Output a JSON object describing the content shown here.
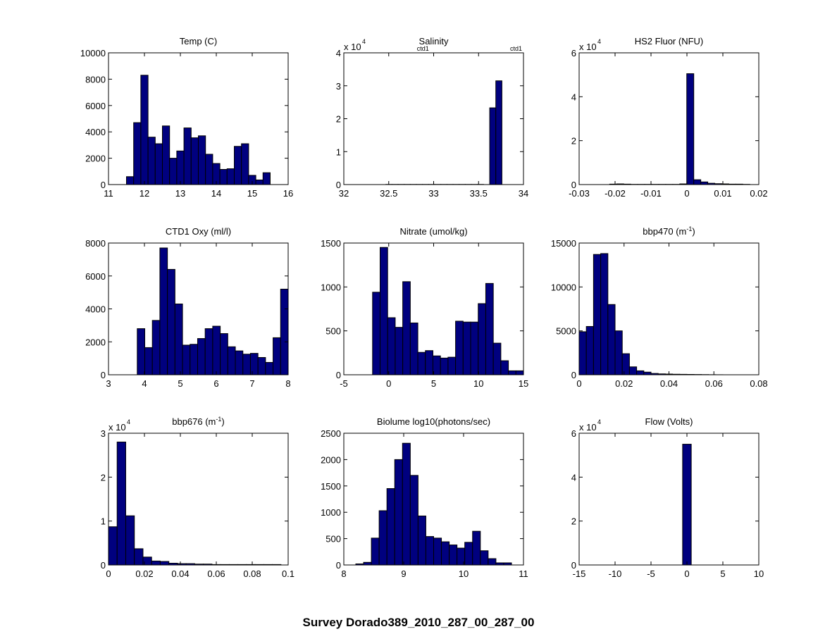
{
  "figure": {
    "suptitle": "Survey Dorado389_2010_287_00_287_00",
    "bar_fill": "#00007f",
    "bar_edge": "#000000"
  },
  "chart_data": [
    {
      "type": "bar",
      "title": "Temp (C)",
      "xlim": [
        11,
        16
      ],
      "ylim": [
        0,
        10000
      ],
      "xticks": [
        "11",
        "12",
        "13",
        "14",
        "15",
        "16"
      ],
      "yticks": [
        "0",
        "2000",
        "4000",
        "6000",
        "8000",
        "10000"
      ],
      "bin_start": 11.5,
      "bin_width": 0.2,
      "values": [
        600,
        4700,
        8300,
        3600,
        3100,
        4450,
        2000,
        2550,
        4300,
        3550,
        3700,
        2300,
        1600,
        1150,
        1200,
        2900,
        3100,
        700,
        350,
        900
      ]
    },
    {
      "type": "bar",
      "title": "Salinity",
      "exponent_label": "x 10",
      "exponent_power": "4",
      "annotations": [
        "ctd1",
        "ctd1"
      ],
      "xlim": [
        32,
        34
      ],
      "ylim": [
        0,
        4
      ],
      "xticks": [
        "32",
        "32.5",
        "33",
        "33.5",
        "34"
      ],
      "yticks": [
        "0",
        "1",
        "2",
        "3",
        "4"
      ],
      "bin_start": 32.4,
      "bin_width": 0.068,
      "values": [
        0,
        0.005,
        0.005,
        0.005,
        0.005,
        0.005,
        0.005,
        0.005,
        0.005,
        0.005,
        0.005,
        0.005,
        0.005,
        0.005,
        0.005,
        0.005,
        0.005,
        0,
        2.33,
        3.15
      ]
    },
    {
      "type": "bar",
      "title": "HS2 Fluor (NFU)",
      "exponent_label": "x 10",
      "exponent_power": "4",
      "xlim": [
        -0.03,
        0.02
      ],
      "ylim": [
        0,
        6
      ],
      "xticks": [
        "-0.03",
        "-0.02",
        "-0.01",
        "0",
        "0.01",
        "0.02"
      ],
      "yticks": [
        "0",
        "2",
        "4",
        "6"
      ],
      "bin_start": -0.0215,
      "bin_width": 0.00195,
      "values": [
        0.02,
        0.03,
        0.02,
        0.01,
        0.01,
        0.01,
        0.01,
        0.01,
        0.01,
        0.01,
        0.03,
        5.05,
        0.22,
        0.12,
        0.06,
        0.04,
        0.03,
        0.02,
        0.02,
        0.01
      ]
    },
    {
      "type": "bar",
      "title": "CTD1 Oxy (ml/l)",
      "xlim": [
        3,
        8
      ],
      "ylim": [
        0,
        8000
      ],
      "xticks": [
        "3",
        "4",
        "5",
        "6",
        "7",
        "8"
      ],
      "yticks": [
        "0",
        "2000",
        "4000",
        "6000",
        "8000"
      ],
      "bin_start": 3.8,
      "bin_width": 0.21,
      "values": [
        2800,
        1650,
        3300,
        7700,
        6400,
        4300,
        1800,
        1850,
        2200,
        2800,
        2950,
        2500,
        1700,
        1450,
        1250,
        1300,
        1050,
        750,
        2250,
        5200
      ]
    },
    {
      "type": "bar",
      "title": "Nitrate (umol/kg)",
      "xlim": [
        -5,
        15
      ],
      "ylim": [
        0,
        1500
      ],
      "xticks": [
        "-5",
        "0",
        "5",
        "10",
        "15"
      ],
      "yticks": [
        "0",
        "500",
        "1000",
        "1500"
      ],
      "bin_start": -1.8,
      "bin_width": 0.84,
      "values": [
        940,
        1450,
        650,
        540,
        1060,
        590,
        255,
        275,
        215,
        190,
        200,
        610,
        600,
        600,
        810,
        1040,
        360,
        160,
        45,
        45
      ]
    },
    {
      "type": "bar",
      "title": "bbp470 (m",
      "title_sup": "-1",
      "title_end": ")",
      "xlim": [
        0,
        0.08
      ],
      "ylim": [
        0,
        15000
      ],
      "xticks": [
        "0",
        "0.02",
        "0.04",
        "0.06",
        "0.08"
      ],
      "yticks": [
        "0",
        "5000",
        "10000",
        "15000"
      ],
      "bin_start": 0,
      "bin_width": 0.0032,
      "values": [
        4900,
        5500,
        13700,
        13800,
        8000,
        5000,
        2400,
        900,
        450,
        300,
        150,
        100,
        80,
        60,
        50,
        40,
        30,
        20,
        10,
        5
      ]
    },
    {
      "type": "bar",
      "title": "bbp676 (m",
      "title_sup": "-1",
      "title_end": ")",
      "exponent_label": "x 10",
      "exponent_power": "4",
      "xlim": [
        0,
        0.1
      ],
      "ylim": [
        0,
        3
      ],
      "xticks": [
        "0",
        "0.02",
        "0.04",
        "0.06",
        "0.08",
        "0.1"
      ],
      "yticks": [
        "0",
        "1",
        "2",
        "3"
      ],
      "bin_start": 0,
      "bin_width": 0.0048,
      "values": [
        0.87,
        2.8,
        1.12,
        0.37,
        0.18,
        0.09,
        0.08,
        0.04,
        0.03,
        0.03,
        0.02,
        0.02,
        0.01,
        0.01,
        0.01,
        0.01,
        0.01,
        0.01,
        0.01,
        0.01
      ]
    },
    {
      "type": "bar",
      "title": "Biolume log10(photons/sec)",
      "xlim": [
        8,
        11
      ],
      "ylim": [
        0,
        2500
      ],
      "xticks": [
        "8",
        "9",
        "10",
        "11"
      ],
      "yticks": [
        "0",
        "500",
        "1000",
        "1500",
        "2000",
        "2500"
      ],
      "bin_start": 8.2,
      "bin_width": 0.13,
      "values": [
        20,
        50,
        510,
        1030,
        1450,
        2000,
        2310,
        1700,
        930,
        540,
        510,
        440,
        380,
        320,
        430,
        640,
        270,
        120,
        40,
        40
      ]
    },
    {
      "type": "bar",
      "title": "Flow (Volts)",
      "exponent_label": "x 10",
      "exponent_power": "4",
      "xlim": [
        -15,
        10
      ],
      "ylim": [
        0,
        6
      ],
      "xticks": [
        "-15",
        "-10",
        "-5",
        "0",
        "5",
        "10"
      ],
      "yticks": [
        "0",
        "2",
        "4",
        "6"
      ],
      "bin_start": -0.6,
      "bin_width": 1.2,
      "values": [
        5.5
      ]
    }
  ]
}
